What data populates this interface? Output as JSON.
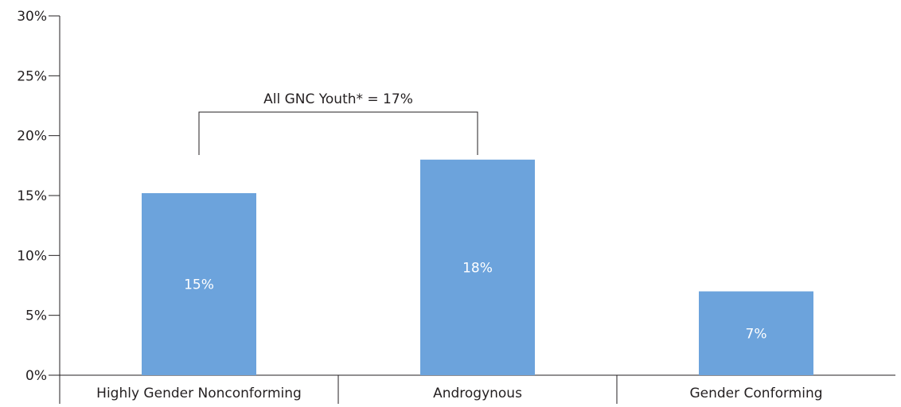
{
  "chart_data": {
    "type": "bar",
    "categories": [
      "Highly Gender Nonconforming",
      "Androgynous",
      "Gender Conforming"
    ],
    "values": [
      15.2,
      18,
      7
    ],
    "value_labels": [
      "15%",
      "18%",
      "7%"
    ],
    "ylim": [
      0,
      30
    ],
    "yticks": [
      0,
      5,
      10,
      15,
      20,
      25,
      30
    ],
    "ytick_labels": [
      "0%",
      "5%",
      "10%",
      "15%",
      "20%",
      "25%",
      "30%"
    ],
    "title": "",
    "xlabel": "",
    "ylabel": "",
    "grid": false,
    "bar_color": "#6ca3dc",
    "annotations": [
      {
        "text": "All GNC Youth* = 17%",
        "type": "bracket",
        "spans_categories": [
          "Highly Gender Nonconforming",
          "Androgynous"
        ]
      }
    ]
  }
}
